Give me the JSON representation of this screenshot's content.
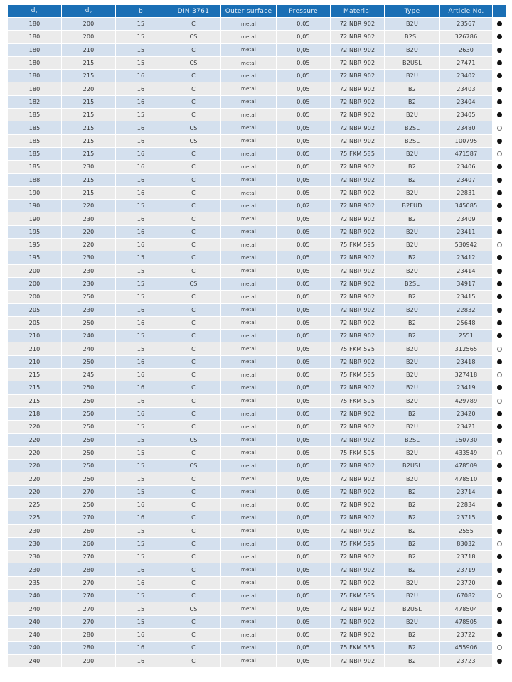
{
  "table": {
    "columns": [
      {
        "label": "d",
        "sub": "1"
      },
      {
        "label": "d",
        "sub": "2"
      },
      {
        "label": "b",
        "sub": ""
      },
      {
        "label": "DIN 3761",
        "sub": ""
      },
      {
        "label": "Outer surface",
        "sub": ""
      },
      {
        "label": "Pressure",
        "sub": ""
      },
      {
        "label": "Material",
        "sub": ""
      },
      {
        "label": "Type",
        "sub": ""
      },
      {
        "label": "Article No.",
        "sub": ""
      },
      {
        "label": "",
        "sub": ""
      }
    ],
    "colors": {
      "header": "#1a6fb5",
      "row_odd": "#d4e0ee",
      "row_even": "#ebebeb"
    },
    "rows": [
      [
        "180",
        "200",
        "15",
        "C",
        "metal",
        "0,05",
        "72 NBR 902",
        "B2U",
        "23567",
        "filled"
      ],
      [
        "180",
        "200",
        "15",
        "CS",
        "metal",
        "0,05",
        "72 NBR 902",
        "B2SL",
        "326786",
        "filled"
      ],
      [
        "180",
        "210",
        "15",
        "C",
        "metal",
        "0,05",
        "72 NBR 902",
        "B2U",
        "2630",
        "filled"
      ],
      [
        "180",
        "215",
        "15",
        "CS",
        "metal",
        "0,05",
        "72 NBR 902",
        "B2USL",
        "27471",
        "filled"
      ],
      [
        "180",
        "215",
        "16",
        "C",
        "metal",
        "0,05",
        "72 NBR 902",
        "B2U",
        "23402",
        "filled"
      ],
      [
        "180",
        "220",
        "16",
        "C",
        "metal",
        "0,05",
        "72 NBR 902",
        "B2",
        "23403",
        "filled"
      ],
      [
        "182",
        "215",
        "16",
        "C",
        "metal",
        "0,05",
        "72 NBR 902",
        "B2",
        "23404",
        "filled"
      ],
      [
        "185",
        "215",
        "15",
        "C",
        "metal",
        "0,05",
        "72 NBR 902",
        "B2U",
        "23405",
        "filled"
      ],
      [
        "185",
        "215",
        "16",
        "CS",
        "metal",
        "0,05",
        "72 NBR 902",
        "B2SL",
        "23480",
        "empty"
      ],
      [
        "185",
        "215",
        "16",
        "CS",
        "metal",
        "0,05",
        "72 NBR 902",
        "B2SL",
        "100795",
        "filled"
      ],
      [
        "185",
        "215",
        "16",
        "C",
        "metal",
        "0,05",
        "75 FKM 585",
        "B2U",
        "471587",
        "empty"
      ],
      [
        "185",
        "230",
        "16",
        "C",
        "metal",
        "0,05",
        "72 NBR 902",
        "B2",
        "23406",
        "filled"
      ],
      [
        "188",
        "215",
        "16",
        "C",
        "metal",
        "0,05",
        "72 NBR 902",
        "B2",
        "23407",
        "filled"
      ],
      [
        "190",
        "215",
        "16",
        "C",
        "metal",
        "0,05",
        "72 NBR 902",
        "B2U",
        "22831",
        "filled"
      ],
      [
        "190",
        "220",
        "15",
        "C",
        "metal",
        "0,02",
        "72 NBR 902",
        "B2FUD",
        "345085",
        "filled"
      ],
      [
        "190",
        "230",
        "16",
        "C",
        "metal",
        "0,05",
        "72 NBR 902",
        "B2",
        "23409",
        "filled"
      ],
      [
        "195",
        "220",
        "16",
        "C",
        "metal",
        "0,05",
        "72 NBR 902",
        "B2U",
        "23411",
        "filled"
      ],
      [
        "195",
        "220",
        "16",
        "C",
        "metal",
        "0,05",
        "75 FKM 595",
        "B2U",
        "530942",
        "empty"
      ],
      [
        "195",
        "230",
        "15",
        "C",
        "metal",
        "0,05",
        "72 NBR 902",
        "B2",
        "23412",
        "filled"
      ],
      [
        "200",
        "230",
        "15",
        "C",
        "metal",
        "0,05",
        "72 NBR 902",
        "B2U",
        "23414",
        "filled"
      ],
      [
        "200",
        "230",
        "15",
        "CS",
        "metal",
        "0,05",
        "72 NBR 902",
        "B2SL",
        "34917",
        "filled"
      ],
      [
        "200",
        "250",
        "15",
        "C",
        "metal",
        "0,05",
        "72 NBR 902",
        "B2",
        "23415",
        "filled"
      ],
      [
        "205",
        "230",
        "16",
        "C",
        "metal",
        "0,05",
        "72 NBR 902",
        "B2U",
        "22832",
        "filled"
      ],
      [
        "205",
        "250",
        "16",
        "C",
        "metal",
        "0,05",
        "72 NBR 902",
        "B2",
        "25648",
        "filled"
      ],
      [
        "210",
        "240",
        "15",
        "C",
        "metal",
        "0,05",
        "72 NBR 902",
        "B2",
        "2551",
        "filled"
      ],
      [
        "210",
        "240",
        "15",
        "C",
        "metal",
        "0,05",
        "75 FKM 595",
        "B2U",
        "312565",
        "empty"
      ],
      [
        "210",
        "250",
        "16",
        "C",
        "metal",
        "0,05",
        "72 NBR 902",
        "B2U",
        "23418",
        "filled"
      ],
      [
        "215",
        "245",
        "16",
        "C",
        "metal",
        "0,05",
        "75 FKM 585",
        "B2U",
        "327418",
        "empty"
      ],
      [
        "215",
        "250",
        "16",
        "C",
        "metal",
        "0,05",
        "72 NBR 902",
        "B2U",
        "23419",
        "filled"
      ],
      [
        "215",
        "250",
        "16",
        "C",
        "metal",
        "0,05",
        "75 FKM 595",
        "B2U",
        "429789",
        "empty"
      ],
      [
        "218",
        "250",
        "16",
        "C",
        "metal",
        "0,05",
        "72 NBR 902",
        "B2",
        "23420",
        "filled"
      ],
      [
        "220",
        "250",
        "15",
        "C",
        "metal",
        "0,05",
        "72 NBR 902",
        "B2U",
        "23421",
        "filled"
      ],
      [
        "220",
        "250",
        "15",
        "CS",
        "metal",
        "0,05",
        "72 NBR 902",
        "B2SL",
        "150730",
        "filled"
      ],
      [
        "220",
        "250",
        "15",
        "C",
        "metal",
        "0,05",
        "75 FKM 595",
        "B2U",
        "433549",
        "empty"
      ],
      [
        "220",
        "250",
        "15",
        "CS",
        "metal",
        "0,05",
        "72 NBR 902",
        "B2USL",
        "478509",
        "filled"
      ],
      [
        "220",
        "250",
        "15",
        "C",
        "metal",
        "0,05",
        "72 NBR 902",
        "B2U",
        "478510",
        "filled"
      ],
      [
        "220",
        "270",
        "15",
        "C",
        "metal",
        "0,05",
        "72 NBR 902",
        "B2",
        "23714",
        "filled"
      ],
      [
        "225",
        "250",
        "16",
        "C",
        "metal",
        "0,05",
        "72 NBR 902",
        "B2",
        "22834",
        "filled"
      ],
      [
        "225",
        "270",
        "16",
        "C",
        "metal",
        "0,05",
        "72 NBR 902",
        "B2",
        "23715",
        "filled"
      ],
      [
        "230",
        "260",
        "15",
        "C",
        "metal",
        "0,05",
        "72 NBR 902",
        "B2",
        "2555",
        "filled"
      ],
      [
        "230",
        "260",
        "15",
        "C",
        "metal",
        "0,05",
        "75 FKM 595",
        "B2",
        "83032",
        "empty"
      ],
      [
        "230",
        "270",
        "15",
        "C",
        "metal",
        "0,05",
        "72 NBR 902",
        "B2",
        "23718",
        "filled"
      ],
      [
        "230",
        "280",
        "16",
        "C",
        "metal",
        "0,05",
        "72 NBR 902",
        "B2",
        "23719",
        "filled"
      ],
      [
        "235",
        "270",
        "16",
        "C",
        "metal",
        "0,05",
        "72 NBR 902",
        "B2U",
        "23720",
        "filled"
      ],
      [
        "240",
        "270",
        "15",
        "C",
        "metal",
        "0,05",
        "75 FKM 585",
        "B2U",
        "67082",
        "empty"
      ],
      [
        "240",
        "270",
        "15",
        "CS",
        "metal",
        "0,05",
        "72 NBR 902",
        "B2USL",
        "478504",
        "filled"
      ],
      [
        "240",
        "270",
        "15",
        "C",
        "metal",
        "0,05",
        "72 NBR 902",
        "B2U",
        "478505",
        "filled"
      ],
      [
        "240",
        "280",
        "16",
        "C",
        "metal",
        "0,05",
        "72 NBR 902",
        "B2",
        "23722",
        "filled"
      ],
      [
        "240",
        "280",
        "16",
        "C",
        "metal",
        "0,05",
        "75 FKM 585",
        "B2",
        "455906",
        "empty"
      ],
      [
        "240",
        "290",
        "16",
        "C",
        "metal",
        "0,05",
        "72 NBR 902",
        "B2",
        "23723",
        "filled"
      ]
    ]
  }
}
